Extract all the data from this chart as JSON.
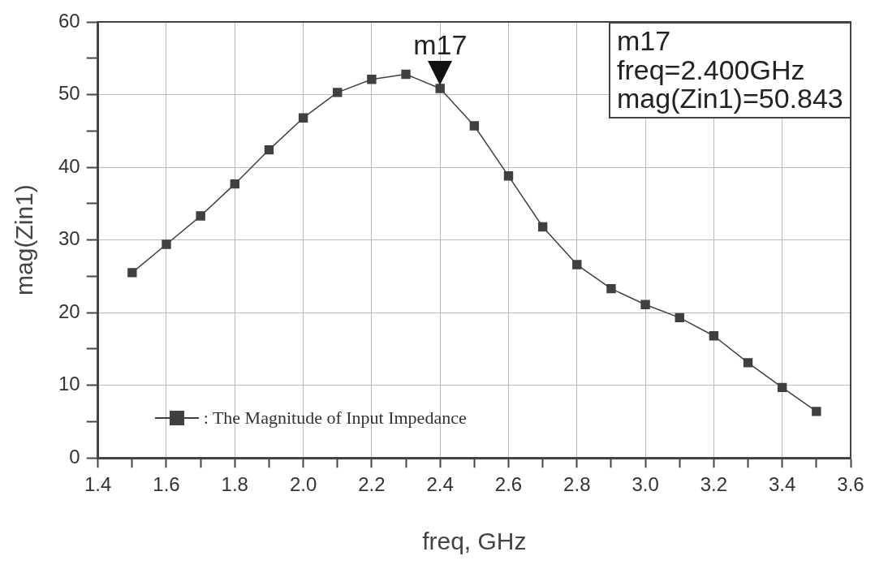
{
  "chart_data": {
    "type": "line",
    "xlabel": "freq, GHz",
    "ylabel": "mag(Zin1)",
    "x": [
      1.5,
      1.6,
      1.7,
      1.8,
      1.9,
      2.0,
      2.1,
      2.2,
      2.3,
      2.4,
      2.5,
      2.6,
      2.7,
      2.8,
      2.9,
      3.0,
      3.1,
      3.2,
      3.3,
      3.4,
      3.5
    ],
    "series": [
      {
        "name": ": The Magnitude of Input Impedance",
        "color": "#404040",
        "values": [
          25.5,
          29.4,
          33.3,
          37.7,
          42.4,
          46.8,
          50.3,
          52.1,
          52.8,
          50.843,
          45.7,
          38.8,
          31.8,
          26.6,
          23.3,
          21.1,
          19.3,
          16.8,
          13.1,
          9.7,
          6.4
        ]
      }
    ],
    "xlim": [
      1.4,
      3.6
    ],
    "xticks": [
      1.4,
      {
        "value": 1.5,
        "label": null
      },
      1.6,
      {
        "value": 1.7,
        "label": null
      },
      1.8,
      {
        "value": 1.9,
        "label": null
      },
      {
        "value": 2.0,
        "label": "2.0"
      },
      {
        "value": 2.1,
        "label": null
      },
      2.2,
      {
        "value": 2.3,
        "label": null
      },
      2.4,
      {
        "value": 2.5,
        "label": null
      },
      2.6,
      {
        "value": 2.7,
        "label": null
      },
      2.8,
      {
        "value": 2.9,
        "label": null
      },
      {
        "value": 3.0,
        "label": "3.0"
      },
      {
        "value": 3.1,
        "label": null
      },
      3.2,
      {
        "value": 3.3,
        "label": null
      },
      3.4,
      {
        "value": 3.5,
        "label": null
      },
      3.6
    ],
    "ylim": [
      0,
      60
    ],
    "yticks": [
      0,
      {
        "value": 5,
        "label": null
      },
      10,
      {
        "value": 15,
        "label": null
      },
      20,
      {
        "value": 25,
        "label": null
      },
      30,
      {
        "value": 35,
        "label": null
      },
      40,
      {
        "value": 45,
        "label": null
      },
      50,
      {
        "value": 55,
        "label": null
      },
      60
    ],
    "annotations": [
      {
        "text": "m17",
        "x": 2.4,
        "y": 50.843
      },
      "m17",
      "freq=2.400GHz",
      "mag(Zin1)=50.843"
    ],
    "grid": true,
    "legend": "bottom left",
    "marker": "square",
    "line_style": "solid"
  }
}
